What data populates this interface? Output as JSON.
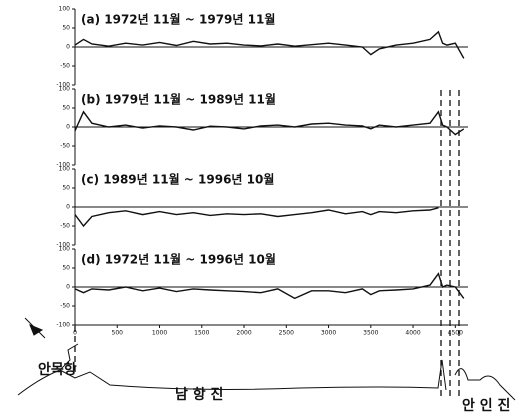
{
  "chart_data": [
    {
      "type": "line",
      "title": "(a) 1972년 11월 ~ 1979년 11월",
      "x": [
        0,
        100,
        200,
        400,
        600,
        800,
        1000,
        1200,
        1400,
        1600,
        1800,
        2000,
        2200,
        2400,
        2600,
        2800,
        3000,
        3200,
        3400,
        3500,
        3600,
        3800,
        4000,
        4200,
        4300,
        4350,
        4400,
        4500,
        4600
      ],
      "series": [
        {
          "color": "#111111",
          "values": [
            5,
            20,
            8,
            2,
            10,
            5,
            12,
            4,
            15,
            8,
            10,
            5,
            3,
            8,
            2,
            6,
            10,
            5,
            0,
            -20,
            -5,
            5,
            10,
            20,
            40,
            10,
            5,
            10,
            -30
          ]
        }
      ],
      "xlim": [
        0,
        4650
      ],
      "ylim": [
        -100,
        100
      ],
      "yticks": [
        -100,
        -50,
        0,
        50,
        100
      ]
    },
    {
      "type": "line",
      "title": "(b) 1979년 11월 ~ 1989년 11월",
      "x": [
        0,
        100,
        200,
        400,
        600,
        800,
        1000,
        1200,
        1400,
        1600,
        1800,
        2000,
        2200,
        2400,
        2600,
        2800,
        3000,
        3200,
        3400,
        3500,
        3600,
        3800,
        4000,
        4200,
        4300,
        4350,
        4400,
        4500,
        4600
      ],
      "series": [
        {
          "color": "#111111",
          "values": [
            -10,
            40,
            10,
            0,
            5,
            -3,
            3,
            0,
            -8,
            2,
            0,
            -5,
            3,
            5,
            0,
            8,
            10,
            5,
            3,
            -5,
            5,
            0,
            5,
            10,
            40,
            5,
            0,
            -20,
            -5
          ]
        }
      ],
      "xlim": [
        0,
        4650
      ],
      "ylim": [
        -100,
        100
      ],
      "yticks": [
        -100,
        -50,
        0,
        50,
        100
      ]
    },
    {
      "type": "line",
      "title": "(c) 1989년 11월 ~ 1996년 10월",
      "x": [
        0,
        100,
        200,
        400,
        600,
        800,
        1000,
        1200,
        1400,
        1600,
        1800,
        2000,
        2200,
        2400,
        2600,
        2800,
        3000,
        3200,
        3400,
        3500,
        3600,
        3800,
        4000,
        4200,
        4300
      ],
      "series": [
        {
          "color": "#111111",
          "values": [
            -20,
            -50,
            -25,
            -15,
            -10,
            -20,
            -12,
            -20,
            -15,
            -22,
            -18,
            -20,
            -18,
            -25,
            -20,
            -15,
            -8,
            -18,
            -12,
            -20,
            -12,
            -15,
            -10,
            -8,
            -2
          ]
        }
      ],
      "xlim": [
        0,
        4650
      ],
      "ylim": [
        -100,
        100
      ],
      "yticks": [
        -100,
        -50,
        0,
        50,
        100
      ]
    },
    {
      "type": "line",
      "title": "(d) 1972년 11월 ~ 1996년 10월",
      "x": [
        0,
        100,
        200,
        400,
        600,
        800,
        1000,
        1200,
        1400,
        1600,
        1800,
        2000,
        2200,
        2400,
        2600,
        2800,
        3000,
        3200,
        3400,
        3500,
        3600,
        3800,
        4000,
        4200,
        4300,
        4350,
        4400,
        4500,
        4600
      ],
      "series": [
        {
          "color": "#111111",
          "values": [
            -5,
            -15,
            -5,
            -8,
            0,
            -10,
            -3,
            -12,
            -5,
            -8,
            -10,
            -12,
            -15,
            -5,
            -30,
            -10,
            -10,
            -15,
            -5,
            -20,
            -10,
            -8,
            -5,
            5,
            35,
            0,
            5,
            0,
            -30
          ]
        }
      ],
      "xlim": [
        0,
        4650
      ],
      "ylim": [
        -100,
        100
      ],
      "yticks": [
        -100,
        -50,
        0,
        50,
        100
      ],
      "xticks": [
        0,
        500,
        1000,
        1500,
        2000,
        2500,
        3000,
        3500,
        4000,
        4500
      ]
    }
  ],
  "map": {
    "labels": [
      "안목항",
      "남 항 진",
      "안 인 진"
    ]
  }
}
